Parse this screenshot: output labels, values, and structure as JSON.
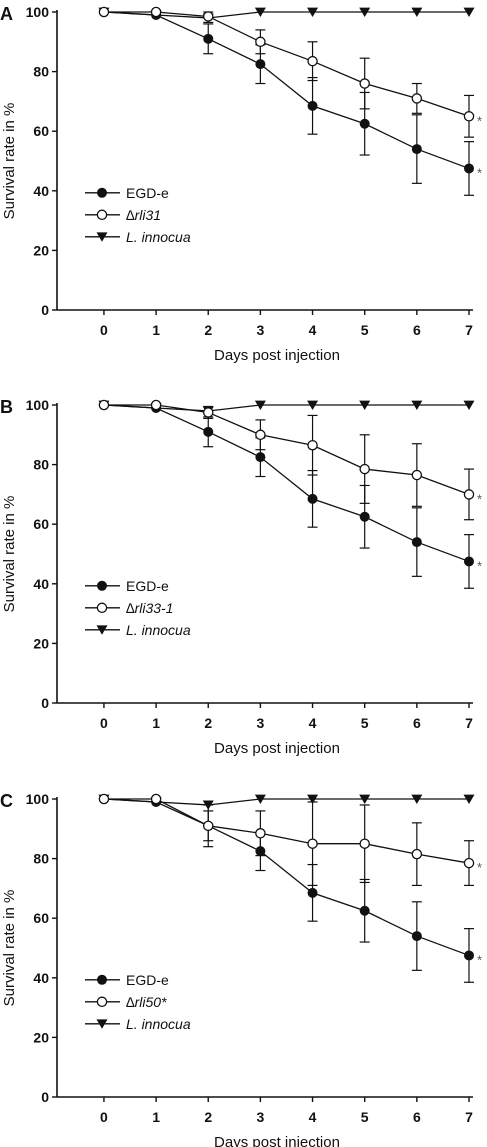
{
  "chart_data": [
    {
      "panel": "A",
      "type": "line",
      "xlabel": "Days post injection",
      "ylabel": "Survival rate in %",
      "xlim": [
        -0.9,
        7
      ],
      "ylim": [
        0,
        100
      ],
      "xticks": [
        "0",
        "1",
        "2",
        "3",
        "4",
        "5",
        "6",
        "7"
      ],
      "yticks": [
        "0",
        "20",
        "40",
        "60",
        "80",
        "100"
      ],
      "grid": false,
      "legend": "left",
      "x": [
        0,
        1,
        2,
        3,
        4,
        5,
        6,
        7
      ],
      "series": [
        {
          "name": "EGD-e",
          "italic": false,
          "marker": "filled-circle",
          "values": [
            100,
            99,
            91,
            82.5,
            68.5,
            62.5,
            54,
            47.5
          ],
          "errors": [
            0,
            0,
            5,
            6.5,
            9.5,
            10.5,
            11.5,
            9
          ]
        },
        {
          "name": "∆rli31",
          "italic": true,
          "marker": "open-circle",
          "values": [
            100,
            100,
            98.5,
            90,
            83.5,
            76,
            71,
            65
          ],
          "errors": [
            0,
            0,
            2,
            4,
            6.5,
            8.5,
            5,
            7
          ],
          "significant": true
        },
        {
          "name": "L. innocua",
          "italic": true,
          "marker": "filled-triangle",
          "values": [
            100,
            99,
            98,
            100,
            100,
            100,
            100,
            100
          ],
          "errors": [
            0,
            0,
            0,
            0,
            0,
            0,
            0,
            0
          ]
        }
      ],
      "annotations": [
        "*",
        "*"
      ]
    },
    {
      "panel": "B",
      "type": "line",
      "xlabel": "Days post injection",
      "ylabel": "Survival rate in %",
      "xlim": [
        -0.9,
        7
      ],
      "ylim": [
        0,
        100
      ],
      "xticks": [
        "0",
        "1",
        "2",
        "3",
        "4",
        "5",
        "6",
        "7"
      ],
      "yticks": [
        "0",
        "20",
        "40",
        "60",
        "80",
        "100"
      ],
      "grid": false,
      "legend": "left",
      "x": [
        0,
        1,
        2,
        3,
        4,
        5,
        6,
        7
      ],
      "series": [
        {
          "name": "EGD-e",
          "italic": false,
          "marker": "filled-circle",
          "values": [
            100,
            99,
            91,
            82.5,
            68.5,
            62.5,
            54,
            47.5
          ],
          "errors": [
            0,
            0,
            5,
            6.5,
            9.5,
            10.5,
            11.5,
            9
          ]
        },
        {
          "name": "∆rli33-1",
          "italic": true,
          "marker": "open-circle",
          "values": [
            100,
            100,
            97.5,
            90,
            86.5,
            78.5,
            76.5,
            70
          ],
          "errors": [
            0,
            0,
            2,
            5,
            10,
            11.5,
            10.5,
            8.5
          ],
          "significant": true
        },
        {
          "name": "L. innocua",
          "italic": true,
          "marker": "filled-triangle",
          "values": [
            100,
            99,
            98,
            100,
            100,
            100,
            100,
            100
          ],
          "errors": [
            0,
            0,
            0,
            0,
            0,
            0,
            0,
            0
          ]
        }
      ],
      "annotations": [
        "*",
        "*"
      ]
    },
    {
      "panel": "C",
      "type": "line",
      "xlabel": "Days post injection",
      "ylabel": "Survival rate in %",
      "xlim": [
        -0.9,
        7
      ],
      "ylim": [
        0,
        100
      ],
      "xticks": [
        "0",
        "1",
        "2",
        "3",
        "4",
        "5",
        "6",
        "7"
      ],
      "yticks": [
        "0",
        "20",
        "40",
        "60",
        "80",
        "100"
      ],
      "grid": false,
      "legend": "left",
      "x": [
        0,
        1,
        2,
        3,
        4,
        5,
        6,
        7
      ],
      "series": [
        {
          "name": "EGD-e",
          "italic": false,
          "marker": "filled-circle",
          "values": [
            100,
            99,
            91,
            82.5,
            68.5,
            62.5,
            54,
            47.5
          ],
          "errors": [
            0,
            0,
            5,
            6.5,
            9.5,
            10.5,
            11.5,
            9
          ]
        },
        {
          "name": "∆rli50*",
          "italic": true,
          "marker": "open-circle",
          "values": [
            100,
            100,
            91,
            88.5,
            85,
            85,
            81.5,
            78.5
          ],
          "errors": [
            0,
            0,
            7,
            7.5,
            14,
            13,
            10.5,
            7.5
          ],
          "significant": true
        },
        {
          "name": "L. innocua",
          "italic": true,
          "marker": "filled-triangle",
          "values": [
            100,
            99,
            98,
            100,
            100,
            100,
            100,
            100
          ],
          "errors": [
            0,
            0,
            0,
            0,
            0,
            0,
            0,
            0
          ]
        }
      ],
      "annotations": [
        "*",
        "*"
      ]
    }
  ]
}
